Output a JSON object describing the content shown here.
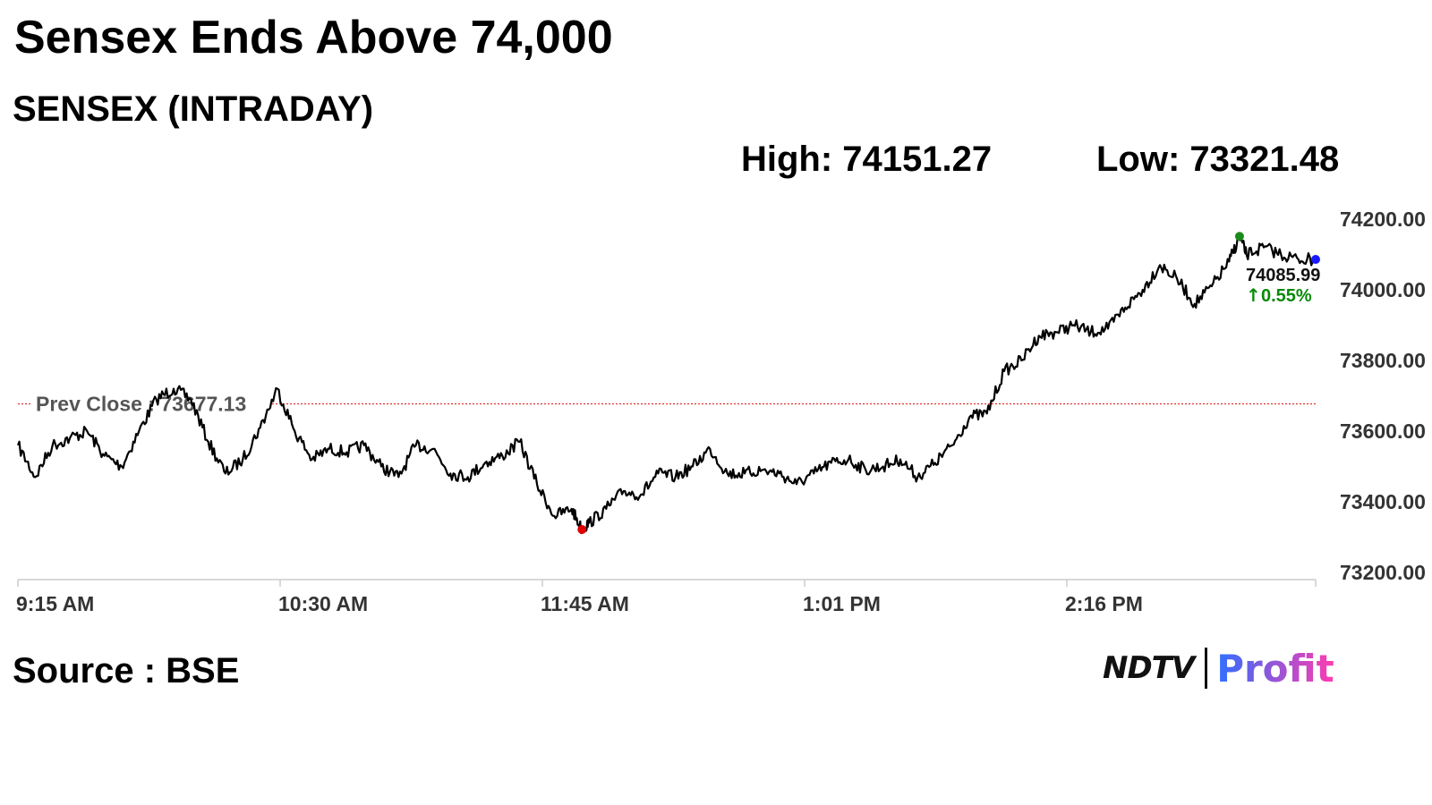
{
  "header": {
    "title": "Sensex Ends Above 74,000",
    "subtitle": "SENSEX (INTRADAY)",
    "high_label": "High: 74151.27",
    "low_label": "Low: 73321.48"
  },
  "footer": {
    "source": "Source : BSE",
    "logo_ndtv": "NDTV",
    "logo_profit": "Profit"
  },
  "colors": {
    "line": "#000000",
    "prev_close_line": "#e03030",
    "high_marker": "#1a8a1a",
    "low_marker": "#e00000",
    "last_marker": "#1a1aff",
    "change_positive": "#0a8a0a",
    "axis": "#cccccc",
    "logo_profit_start": "#2f6fff",
    "logo_profit_end": "#ff3bb0"
  },
  "chart_data": {
    "type": "line",
    "title": "SENSEX (INTRADAY)",
    "xlabel": "",
    "ylabel": "",
    "x_ticks": [
      "9:15 AM",
      "10:30 AM",
      "11:45 AM",
      "1:01 PM",
      "2:16 PM"
    ],
    "y_ticks": [
      "74200.00",
      "74000.00",
      "73800.00",
      "73600.00",
      "73400.00",
      "73200.00"
    ],
    "ylim": [
      73200,
      74200
    ],
    "x_range": [
      "9:15",
      "15:30"
    ],
    "grid": false,
    "prev_close_label": "Prev Close : 73677.13",
    "prev_close": 73677.13,
    "high": {
      "time": "15:08",
      "value": 74151.27
    },
    "low": {
      "time": "11:58",
      "value": 73321.48
    },
    "last_value_label": "74085.99",
    "change_label": "0.55%",
    "change_arrow": "↑",
    "series": [
      {
        "x": [
          "9:15",
          "9:20",
          "9:25",
          "9:30",
          "9:35",
          "9:40",
          "9:45",
          "9:50",
          "9:55",
          "10:00",
          "10:05",
          "10:10",
          "10:15",
          "10:20",
          "10:25",
          "10:30",
          "10:35",
          "10:40",
          "10:45",
          "10:50",
          "10:55",
          "11:00",
          "11:05",
          "11:10",
          "11:15",
          "11:20",
          "11:25",
          "11:30",
          "11:35",
          "11:40",
          "11:45",
          "11:50",
          "11:55",
          "11:58",
          "12:00",
          "12:05",
          "12:10",
          "12:15",
          "12:20",
          "12:25",
          "12:30",
          "12:35",
          "12:40",
          "12:45",
          "12:50",
          "12:55",
          "13:00",
          "13:05",
          "13:10",
          "13:15",
          "13:20",
          "13:25",
          "13:30",
          "13:35",
          "13:40",
          "13:45",
          "13:50",
          "13:55",
          "14:00",
          "14:05",
          "14:10",
          "14:15",
          "14:20",
          "14:25",
          "14:30",
          "14:35",
          "14:40",
          "14:45",
          "14:50",
          "14:55",
          "15:00",
          "15:05",
          "15:08",
          "15:10",
          "15:15",
          "15:20",
          "15:25",
          "15:30"
        ],
        "values": [
          73560,
          73470,
          73560,
          73580,
          73600,
          73530,
          73500,
          73600,
          73690,
          73720,
          73690,
          73570,
          73480,
          73520,
          73610,
          73720,
          73600,
          73520,
          73550,
          73540,
          73560,
          73500,
          73470,
          73560,
          73550,
          73480,
          73470,
          73510,
          73530,
          73570,
          73450,
          73360,
          73380,
          73321,
          73340,
          73380,
          73430,
          73420,
          73480,
          73470,
          73500,
          73550,
          73480,
          73480,
          73490,
          73480,
          73450,
          73480,
          73510,
          73520,
          73490,
          73500,
          73520,
          73470,
          73510,
          73560,
          73640,
          73650,
          73770,
          73800,
          73870,
          73880,
          73900,
          73880,
          73890,
          73950,
          74000,
          74070,
          74030,
          73960,
          74010,
          74080,
          74151,
          74100,
          74120,
          74100,
          74085.99,
          74085.99
        ]
      }
    ]
  }
}
